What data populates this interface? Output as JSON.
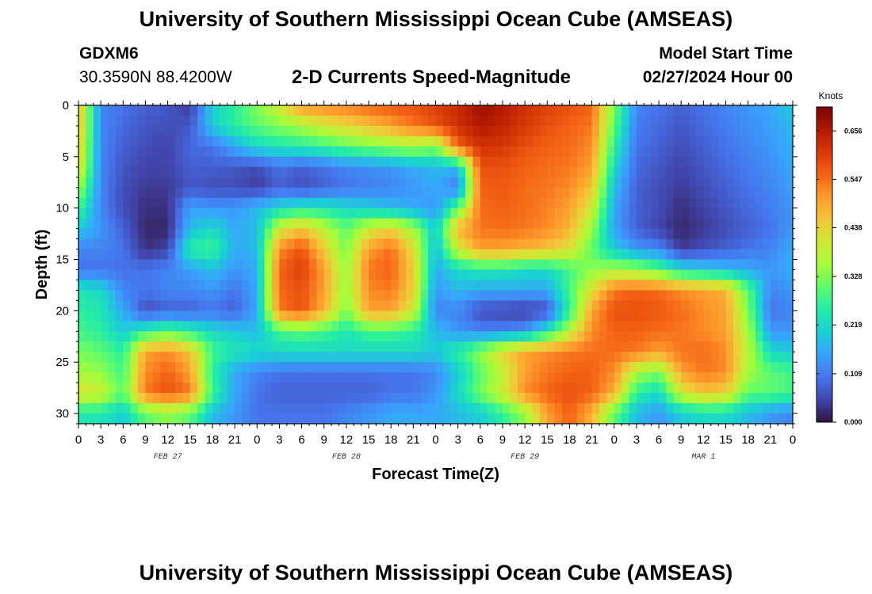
{
  "header": {
    "title": "University of Southern Mississippi Ocean Cube (AMSEAS)",
    "station_id": "GDXM6",
    "station_coords": "30.3590N  88.4200W",
    "subtitle": "2-D Currents Speed-Magnitude",
    "model_start_label": "Model Start Time",
    "model_start_value": "02/27/2024 Hour 00"
  },
  "footer": {
    "title": "University of Southern Mississippi Ocean Cube (AMSEAS)"
  },
  "chart_data": {
    "type": "heatmap",
    "title": "2-D Currents Speed-Magnitude",
    "xlabel": "Forecast Time(Z)",
    "ylabel": "Depth (ft)",
    "x_hours_range": [
      0,
      96
    ],
    "y_range": [
      0,
      31
    ],
    "y_reversed": true,
    "x_tick_labels": [
      "0",
      "3",
      "6",
      "9",
      "12",
      "15",
      "18",
      "21",
      "0",
      "3",
      "6",
      "9",
      "12",
      "15",
      "18",
      "21",
      "0",
      "3",
      "6",
      "9",
      "12",
      "15",
      "18",
      "21",
      "0",
      "3",
      "6",
      "9",
      "12",
      "15",
      "18",
      "21",
      "0"
    ],
    "date_labels": [
      {
        "label": "FEB 27",
        "hour": 12
      },
      {
        "label": "FEB 28",
        "hour": 36
      },
      {
        "label": "FEB 29",
        "hour": 60
      },
      {
        "label": "MAR 1",
        "hour": 84
      }
    ],
    "y_ticks": [
      0,
      5,
      10,
      15,
      20,
      25,
      30
    ],
    "colorbar": {
      "unit": "Knots",
      "min": 0.0,
      "max": 0.71,
      "ticks": [
        0.0,
        0.109,
        0.219,
        0.328,
        0.438,
        0.547,
        0.656
      ],
      "tick_labels": [
        "0.000",
        "0.109",
        "0.219",
        "0.328",
        "0.438",
        "0.547",
        "0.656"
      ],
      "colors": [
        "#30123b",
        "#4145ab",
        "#4675ed",
        "#39a2fc",
        "#1bcfd4",
        "#24eca6",
        "#61fc6c",
        "#a4fc3b",
        "#d1e834",
        "#f3c63a",
        "#fe9b2d",
        "#f36315",
        "#d93806",
        "#b11901",
        "#7a0403"
      ]
    },
    "depths": [
      0,
      2,
      4,
      6,
      8,
      10,
      12,
      14,
      16,
      18,
      20,
      22,
      24,
      26,
      28,
      30
    ],
    "times": [
      0,
      3,
      6,
      9,
      12,
      15,
      18,
      21,
      24,
      27,
      30,
      33,
      36,
      39,
      42,
      45,
      48,
      51,
      54,
      57,
      60,
      63,
      66,
      69,
      72,
      75,
      78,
      81,
      84,
      87,
      90,
      93,
      96
    ],
    "values": [
      [
        0.48,
        0.12,
        0.1,
        0.08,
        0.07,
        0.04,
        0.2,
        0.26,
        0.33,
        0.4,
        0.52,
        0.53,
        0.54,
        0.56,
        0.57,
        0.58,
        0.6,
        0.63,
        0.68,
        0.66,
        0.62,
        0.6,
        0.58,
        0.56,
        0.32,
        0.12,
        0.1,
        0.08,
        0.1,
        0.12,
        0.14,
        0.16,
        0.2
      ],
      [
        0.48,
        0.12,
        0.09,
        0.07,
        0.06,
        0.07,
        0.2,
        0.26,
        0.3,
        0.33,
        0.36,
        0.4,
        0.43,
        0.46,
        0.5,
        0.54,
        0.58,
        0.62,
        0.66,
        0.64,
        0.61,
        0.58,
        0.56,
        0.54,
        0.3,
        0.11,
        0.09,
        0.07,
        0.09,
        0.11,
        0.13,
        0.15,
        0.18
      ],
      [
        0.46,
        0.12,
        0.08,
        0.06,
        0.05,
        0.09,
        0.1,
        0.16,
        0.22,
        0.24,
        0.25,
        0.27,
        0.3,
        0.32,
        0.34,
        0.36,
        0.33,
        0.56,
        0.62,
        0.61,
        0.58,
        0.56,
        0.55,
        0.52,
        0.26,
        0.1,
        0.08,
        0.06,
        0.08,
        0.1,
        0.12,
        0.14,
        0.17
      ],
      [
        0.44,
        0.12,
        0.07,
        0.05,
        0.05,
        0.08,
        0.08,
        0.07,
        0.06,
        0.1,
        0.08,
        0.1,
        0.12,
        0.13,
        0.14,
        0.16,
        0.18,
        0.18,
        0.58,
        0.58,
        0.56,
        0.55,
        0.54,
        0.5,
        0.22,
        0.09,
        0.07,
        0.05,
        0.07,
        0.09,
        0.11,
        0.13,
        0.16
      ],
      [
        0.36,
        0.12,
        0.06,
        0.04,
        0.04,
        0.07,
        0.06,
        0.06,
        0.04,
        0.08,
        0.06,
        0.08,
        0.1,
        0.11,
        0.12,
        0.14,
        0.16,
        0.1,
        0.56,
        0.57,
        0.55,
        0.54,
        0.52,
        0.46,
        0.18,
        0.08,
        0.06,
        0.04,
        0.06,
        0.08,
        0.1,
        0.12,
        0.15
      ],
      [
        0.28,
        0.12,
        0.06,
        0.03,
        0.03,
        0.15,
        0.14,
        0.14,
        0.18,
        0.22,
        0.24,
        0.24,
        0.22,
        0.2,
        0.18,
        0.16,
        0.14,
        0.3,
        0.55,
        0.56,
        0.55,
        0.53,
        0.5,
        0.4,
        0.16,
        0.08,
        0.06,
        0.03,
        0.05,
        0.07,
        0.09,
        0.11,
        0.14
      ],
      [
        0.2,
        0.14,
        0.08,
        0.02,
        0.02,
        0.18,
        0.22,
        0.16,
        0.18,
        0.4,
        0.46,
        0.38,
        0.3,
        0.4,
        0.44,
        0.36,
        0.2,
        0.48,
        0.54,
        0.55,
        0.54,
        0.52,
        0.48,
        0.35,
        0.15,
        0.08,
        0.05,
        0.02,
        0.04,
        0.06,
        0.08,
        0.1,
        0.14
      ],
      [
        0.12,
        0.12,
        0.1,
        0.03,
        0.05,
        0.26,
        0.28,
        0.16,
        0.18,
        0.52,
        0.58,
        0.45,
        0.32,
        0.5,
        0.55,
        0.42,
        0.18,
        0.4,
        0.5,
        0.5,
        0.48,
        0.46,
        0.42,
        0.3,
        0.2,
        0.14,
        0.12,
        0.04,
        0.06,
        0.08,
        0.1,
        0.12,
        0.16
      ],
      [
        0.1,
        0.1,
        0.1,
        0.1,
        0.12,
        0.15,
        0.18,
        0.14,
        0.16,
        0.56,
        0.6,
        0.5,
        0.34,
        0.54,
        0.56,
        0.45,
        0.16,
        0.22,
        0.24,
        0.24,
        0.22,
        0.22,
        0.28,
        0.34,
        0.36,
        0.35,
        0.3,
        0.22,
        0.2,
        0.18,
        0.16,
        0.14,
        0.17
      ],
      [
        0.24,
        0.22,
        0.12,
        0.1,
        0.12,
        0.12,
        0.14,
        0.1,
        0.16,
        0.55,
        0.58,
        0.5,
        0.34,
        0.52,
        0.54,
        0.44,
        0.14,
        0.18,
        0.16,
        0.16,
        0.16,
        0.16,
        0.28,
        0.42,
        0.54,
        0.56,
        0.55,
        0.52,
        0.5,
        0.48,
        0.3,
        0.12,
        0.14
      ],
      [
        0.26,
        0.24,
        0.16,
        0.06,
        0.08,
        0.08,
        0.1,
        0.08,
        0.16,
        0.54,
        0.58,
        0.48,
        0.32,
        0.5,
        0.5,
        0.4,
        0.12,
        0.12,
        0.06,
        0.05,
        0.04,
        0.06,
        0.26,
        0.5,
        0.58,
        0.58,
        0.57,
        0.55,
        0.52,
        0.5,
        0.32,
        0.1,
        0.12
      ],
      [
        0.28,
        0.26,
        0.2,
        0.26,
        0.3,
        0.26,
        0.22,
        0.2,
        0.18,
        0.28,
        0.3,
        0.28,
        0.24,
        0.28,
        0.28,
        0.26,
        0.18,
        0.14,
        0.12,
        0.12,
        0.14,
        0.24,
        0.38,
        0.52,
        0.56,
        0.56,
        0.55,
        0.54,
        0.52,
        0.5,
        0.36,
        0.14,
        0.14
      ],
      [
        0.32,
        0.3,
        0.26,
        0.5,
        0.52,
        0.46,
        0.28,
        0.24,
        0.22,
        0.22,
        0.22,
        0.22,
        0.22,
        0.22,
        0.22,
        0.22,
        0.2,
        0.26,
        0.34,
        0.44,
        0.5,
        0.52,
        0.54,
        0.55,
        0.55,
        0.54,
        0.5,
        0.54,
        0.55,
        0.52,
        0.38,
        0.22,
        0.2
      ],
      [
        0.36,
        0.34,
        0.28,
        0.52,
        0.56,
        0.5,
        0.26,
        0.16,
        0.12,
        0.1,
        0.1,
        0.1,
        0.1,
        0.1,
        0.1,
        0.1,
        0.12,
        0.2,
        0.3,
        0.38,
        0.5,
        0.54,
        0.56,
        0.56,
        0.52,
        0.36,
        0.32,
        0.5,
        0.54,
        0.52,
        0.36,
        0.3,
        0.28
      ],
      [
        0.42,
        0.4,
        0.3,
        0.54,
        0.58,
        0.54,
        0.28,
        0.16,
        0.1,
        0.08,
        0.08,
        0.08,
        0.08,
        0.08,
        0.1,
        0.1,
        0.14,
        0.22,
        0.32,
        0.4,
        0.52,
        0.56,
        0.58,
        0.56,
        0.48,
        0.26,
        0.22,
        0.4,
        0.46,
        0.44,
        0.3,
        0.3,
        0.28
      ],
      [
        0.24,
        0.24,
        0.2,
        0.3,
        0.34,
        0.3,
        0.18,
        0.14,
        0.1,
        0.1,
        0.1,
        0.1,
        0.12,
        0.14,
        0.16,
        0.16,
        0.16,
        0.18,
        0.2,
        0.26,
        0.34,
        0.5,
        0.56,
        0.48,
        0.3,
        0.18,
        0.14,
        0.2,
        0.22,
        0.22,
        0.18,
        0.14,
        0.12
      ]
    ]
  }
}
